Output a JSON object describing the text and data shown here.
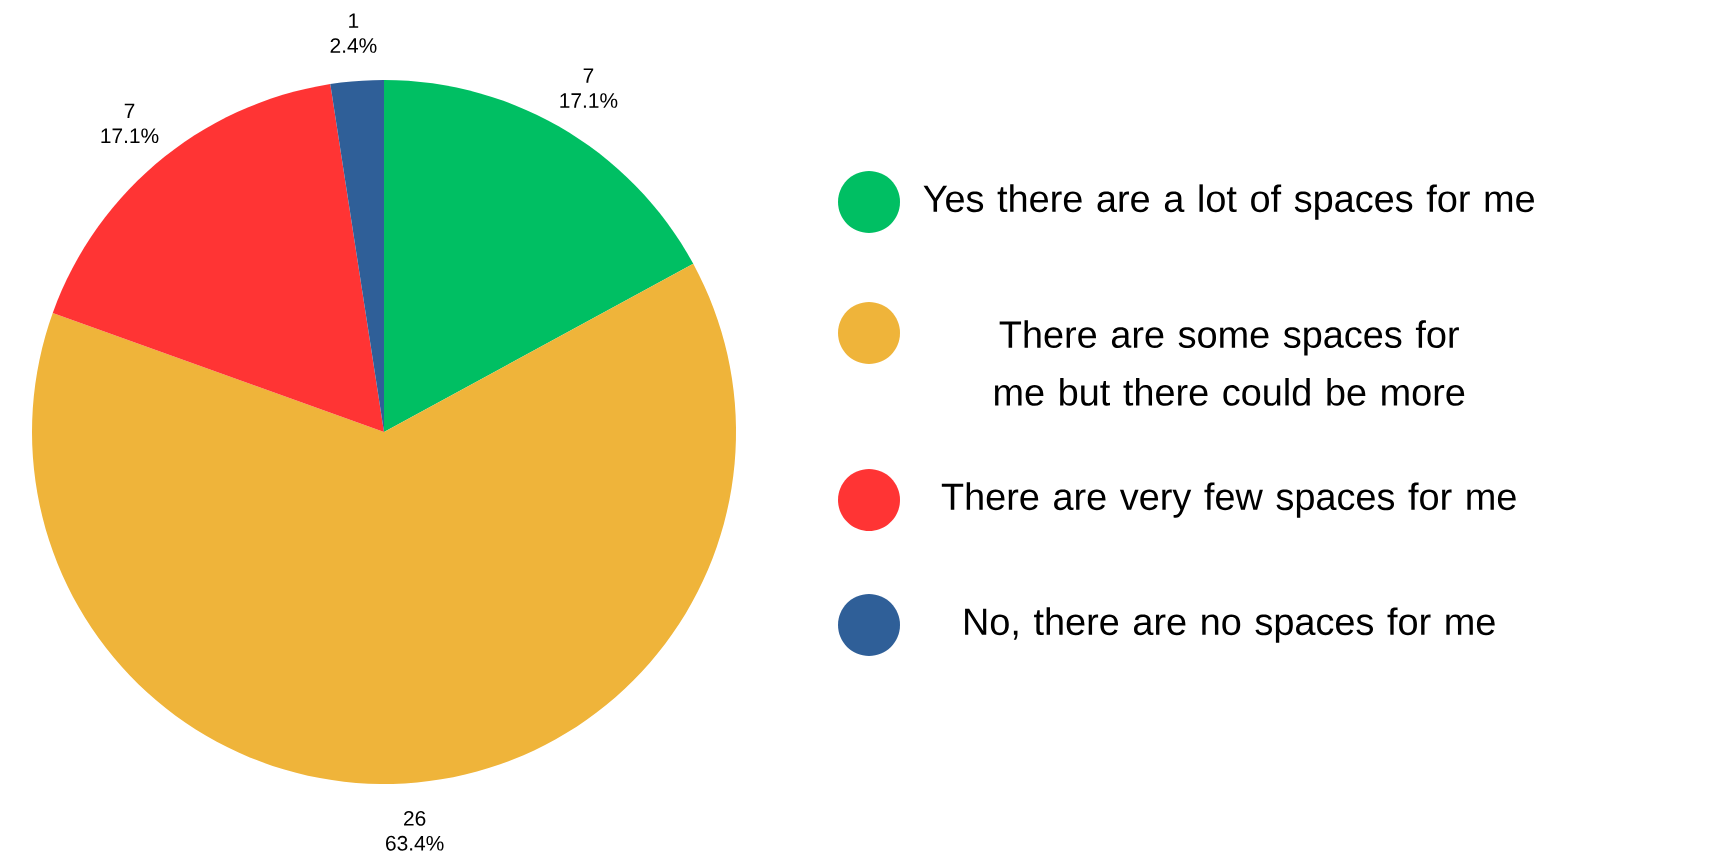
{
  "chart_data": {
    "type": "pie",
    "categories": [
      "Yes there are a lot of spaces for me",
      "There are some spaces for me but there could be more",
      "There are very few spaces for me",
      "No, there are no spaces for me"
    ],
    "values": [
      7,
      26,
      7,
      1
    ],
    "colors": [
      "#00bf63",
      "#efb43a",
      "#ff3434",
      "#2f5f98"
    ],
    "value_labels": [
      "7 17.1%",
      "26 63.4%",
      "7 17.1%",
      "1 2.4%"
    ],
    "legend": "right"
  }
}
